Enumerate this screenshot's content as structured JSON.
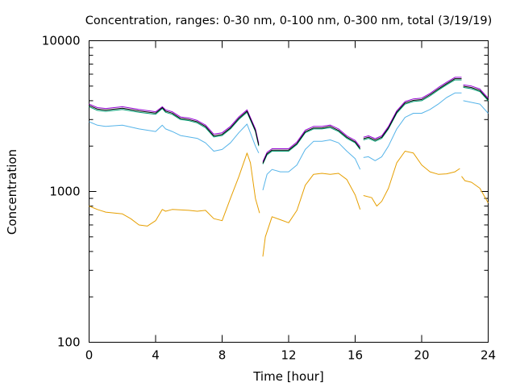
{
  "chart_data": {
    "type": "line",
    "title": "Concentration, ranges: 0-30 nm, 0-100 nm, 0-300 nm, total (3/19/19)",
    "xlabel": "Time [hour]",
    "ylabel": "Concentration",
    "xlim": [
      0,
      24
    ],
    "ylim": [
      100,
      10000
    ],
    "yscale": "log",
    "x_ticks": [
      0,
      4,
      8,
      12,
      16,
      20,
      24
    ],
    "y_ticks": [
      100,
      1000,
      10000
    ],
    "grid": false,
    "legend": "none",
    "series": [
      {
        "color": "#e69f00",
        "segments": [
          [
            [
              0,
              800
            ],
            [
              0.5,
              760
            ],
            [
              1,
              730
            ],
            [
              2,
              710
            ],
            [
              2.5,
              660
            ],
            [
              3,
              600
            ],
            [
              3.5,
              590
            ],
            [
              4,
              640
            ],
            [
              4.4,
              760
            ],
            [
              4.6,
              740
            ],
            [
              5,
              760
            ],
            [
              6,
              750
            ],
            [
              6.5,
              740
            ],
            [
              7,
              750
            ],
            [
              7.5,
              660
            ],
            [
              8,
              640
            ],
            [
              8.5,
              900
            ],
            [
              9,
              1250
            ],
            [
              9.5,
              1800
            ],
            [
              9.7,
              1550
            ],
            [
              10,
              900
            ],
            [
              10.25,
              720
            ]
          ],
          [
            [
              10.45,
              370
            ],
            [
              10.6,
              500
            ],
            [
              11,
              680
            ],
            [
              11.5,
              650
            ],
            [
              12,
              620
            ],
            [
              12.5,
              750
            ],
            [
              13,
              1100
            ],
            [
              13.5,
              1300
            ],
            [
              14,
              1320
            ],
            [
              14.5,
              1300
            ],
            [
              15,
              1320
            ],
            [
              15.5,
              1200
            ],
            [
              16,
              950
            ],
            [
              16.3,
              760
            ]
          ],
          [
            [
              16.5,
              940
            ],
            [
              17,
              910
            ],
            [
              17.3,
              800
            ],
            [
              17.6,
              860
            ],
            [
              18,
              1050
            ],
            [
              18.5,
              1550
            ],
            [
              19,
              1850
            ],
            [
              19.5,
              1800
            ],
            [
              20,
              1500
            ],
            [
              20.5,
              1350
            ],
            [
              21,
              1300
            ],
            [
              21.5,
              1310
            ],
            [
              22,
              1350
            ],
            [
              22.3,
              1420
            ]
          ],
          [
            [
              22.4,
              1260
            ],
            [
              22.6,
              1180
            ],
            [
              23,
              1150
            ],
            [
              23.5,
              1050
            ],
            [
              24,
              840
            ]
          ]
        ]
      },
      {
        "color": "#56b4e9",
        "segments": [
          [
            [
              0,
              2900
            ],
            [
              0.5,
              2750
            ],
            [
              1,
              2700
            ],
            [
              2,
              2750
            ],
            [
              3,
              2600
            ],
            [
              4,
              2500
            ],
            [
              4.4,
              2750
            ],
            [
              4.6,
              2600
            ],
            [
              5,
              2500
            ],
            [
              5.5,
              2350
            ],
            [
              6,
              2300
            ],
            [
              6.5,
              2250
            ],
            [
              7,
              2100
            ],
            [
              7.5,
              1850
            ],
            [
              8,
              1900
            ],
            [
              8.5,
              2100
            ],
            [
              9,
              2450
            ],
            [
              9.5,
              2800
            ],
            [
              10,
              2000
            ],
            [
              10.2,
              1800
            ]
          ],
          [
            [
              10.45,
              1020
            ],
            [
              10.7,
              1300
            ],
            [
              11,
              1400
            ],
            [
              11.5,
              1350
            ],
            [
              12,
              1350
            ],
            [
              12.5,
              1500
            ],
            [
              13,
              1900
            ],
            [
              13.5,
              2150
            ],
            [
              14,
              2150
            ],
            [
              14.5,
              2200
            ],
            [
              15,
              2100
            ],
            [
              15.5,
              1850
            ],
            [
              16,
              1650
            ],
            [
              16.3,
              1400
            ]
          ],
          [
            [
              16.5,
              1680
            ],
            [
              16.8,
              1700
            ],
            [
              17.2,
              1600
            ],
            [
              17.6,
              1700
            ],
            [
              18,
              2000
            ],
            [
              18.5,
              2600
            ],
            [
              19,
              3100
            ],
            [
              19.5,
              3300
            ],
            [
              20,
              3300
            ],
            [
              20.5,
              3500
            ],
            [
              21,
              3800
            ],
            [
              21.5,
              4200
            ],
            [
              22,
              4500
            ],
            [
              22.4,
              4500
            ]
          ],
          [
            [
              22.5,
              4000
            ],
            [
              23,
              3900
            ],
            [
              23.5,
              3800
            ],
            [
              24,
              3300
            ]
          ]
        ]
      },
      {
        "color": "#009e73",
        "segments": [
          [
            [
              0,
              3650
            ],
            [
              0.5,
              3450
            ],
            [
              1,
              3400
            ],
            [
              2,
              3500
            ],
            [
              3,
              3350
            ],
            [
              4,
              3250
            ],
            [
              4.4,
              3550
            ],
            [
              4.6,
              3350
            ],
            [
              5,
              3250
            ],
            [
              5.5,
              3000
            ],
            [
              6,
              2950
            ],
            [
              6.5,
              2850
            ],
            [
              7,
              2650
            ],
            [
              7.5,
              2300
            ],
            [
              8,
              2350
            ],
            [
              8.5,
              2600
            ],
            [
              9,
              3000
            ],
            [
              9.5,
              3350
            ],
            [
              10,
              2500
            ],
            [
              10.2,
              2000
            ]
          ],
          [
            [
              10.45,
              1520
            ],
            [
              10.7,
              1750
            ],
            [
              11,
              1850
            ],
            [
              11.5,
              1850
            ],
            [
              12,
              1850
            ],
            [
              12.5,
              2050
            ],
            [
              13,
              2450
            ],
            [
              13.5,
              2600
            ],
            [
              14,
              2600
            ],
            [
              14.5,
              2650
            ],
            [
              15,
              2500
            ],
            [
              15.5,
              2250
            ],
            [
              16,
              2100
            ],
            [
              16.3,
              1900
            ]
          ],
          [
            [
              16.5,
              2200
            ],
            [
              16.8,
              2250
            ],
            [
              17.2,
              2150
            ],
            [
              17.6,
              2250
            ],
            [
              18,
              2600
            ],
            [
              18.5,
              3300
            ],
            [
              19,
              3800
            ],
            [
              19.5,
              3950
            ],
            [
              20,
              4000
            ],
            [
              20.5,
              4300
            ],
            [
              21,
              4700
            ],
            [
              21.5,
              5100
            ],
            [
              22,
              5500
            ],
            [
              22.4,
              5500
            ]
          ],
          [
            [
              22.5,
              4900
            ],
            [
              23,
              4800
            ],
            [
              23.5,
              4600
            ],
            [
              24,
              4000
            ]
          ]
        ]
      },
      {
        "color": "#9400d3",
        "segments": [
          [
            [
              0,
              3800
            ],
            [
              0.5,
              3600
            ],
            [
              1,
              3550
            ],
            [
              2,
              3650
            ],
            [
              3,
              3500
            ],
            [
              4,
              3380
            ],
            [
              4.4,
              3650
            ],
            [
              4.6,
              3480
            ],
            [
              5,
              3380
            ],
            [
              5.5,
              3120
            ],
            [
              6,
              3070
            ],
            [
              6.5,
              2960
            ],
            [
              7,
              2760
            ],
            [
              7.5,
              2400
            ],
            [
              8,
              2450
            ],
            [
              8.5,
              2700
            ],
            [
              9,
              3120
            ],
            [
              9.5,
              3480
            ],
            [
              10,
              2600
            ],
            [
              10.2,
              2080
            ]
          ],
          [
            [
              10.45,
              1580
            ],
            [
              10.7,
              1820
            ],
            [
              11,
              1920
            ],
            [
              11.5,
              1920
            ],
            [
              12,
              1920
            ],
            [
              12.5,
              2130
            ],
            [
              13,
              2550
            ],
            [
              13.5,
              2700
            ],
            [
              14,
              2700
            ],
            [
              14.5,
              2760
            ],
            [
              15,
              2600
            ],
            [
              15.5,
              2340
            ],
            [
              16,
              2180
            ],
            [
              16.3,
              1980
            ]
          ],
          [
            [
              16.5,
              2290
            ],
            [
              16.8,
              2340
            ],
            [
              17.2,
              2240
            ],
            [
              17.6,
              2340
            ],
            [
              18,
              2700
            ],
            [
              18.5,
              3430
            ],
            [
              19,
              3950
            ],
            [
              19.5,
              4110
            ],
            [
              20,
              4160
            ],
            [
              20.5,
              4470
            ],
            [
              21,
              4890
            ],
            [
              21.5,
              5300
            ],
            [
              22,
              5720
            ],
            [
              22.4,
              5720
            ]
          ],
          [
            [
              22.5,
              5100
            ],
            [
              23,
              5000
            ],
            [
              23.5,
              4780
            ],
            [
              24,
              4160
            ]
          ]
        ]
      },
      {
        "color": "#000000",
        "segments": [
          [
            [
              0,
              3720
            ],
            [
              0.5,
              3520
            ],
            [
              1,
              3470
            ],
            [
              2,
              3570
            ],
            [
              3,
              3420
            ],
            [
              4,
              3310
            ],
            [
              4.4,
              3600
            ],
            [
              4.6,
              3410
            ],
            [
              5,
              3310
            ],
            [
              5.5,
              3050
            ],
            [
              6,
              3000
            ],
            [
              6.5,
              2900
            ],
            [
              7,
              2700
            ],
            [
              7.5,
              2340
            ],
            [
              8,
              2390
            ],
            [
              8.5,
              2640
            ],
            [
              9,
              3050
            ],
            [
              9.5,
              3410
            ],
            [
              10,
              2540
            ],
            [
              10.2,
              2030
            ]
          ],
          [
            [
              10.45,
              1540
            ],
            [
              10.7,
              1780
            ],
            [
              11,
              1880
            ],
            [
              11.5,
              1880
            ],
            [
              12,
              1880
            ],
            [
              12.5,
              2080
            ],
            [
              13,
              2490
            ],
            [
              13.5,
              2640
            ],
            [
              14,
              2640
            ],
            [
              14.5,
              2700
            ],
            [
              15,
              2540
            ],
            [
              15.5,
              2290
            ],
            [
              16,
              2130
            ],
            [
              16.3,
              1930
            ]
          ],
          [
            [
              16.5,
              2240
            ],
            [
              16.8,
              2290
            ],
            [
              17.2,
              2190
            ],
            [
              17.6,
              2290
            ],
            [
              18,
              2640
            ],
            [
              18.5,
              3360
            ],
            [
              19,
              3870
            ],
            [
              19.5,
              4020
            ],
            [
              20,
              4070
            ],
            [
              20.5,
              4380
            ],
            [
              21,
              4780
            ],
            [
              21.5,
              5190
            ],
            [
              22,
              5600
            ],
            [
              22.4,
              5600
            ]
          ],
          [
            [
              22.5,
              4990
            ],
            [
              23,
              4890
            ],
            [
              23.5,
              4680
            ],
            [
              24,
              4070
            ]
          ]
        ]
      }
    ]
  }
}
